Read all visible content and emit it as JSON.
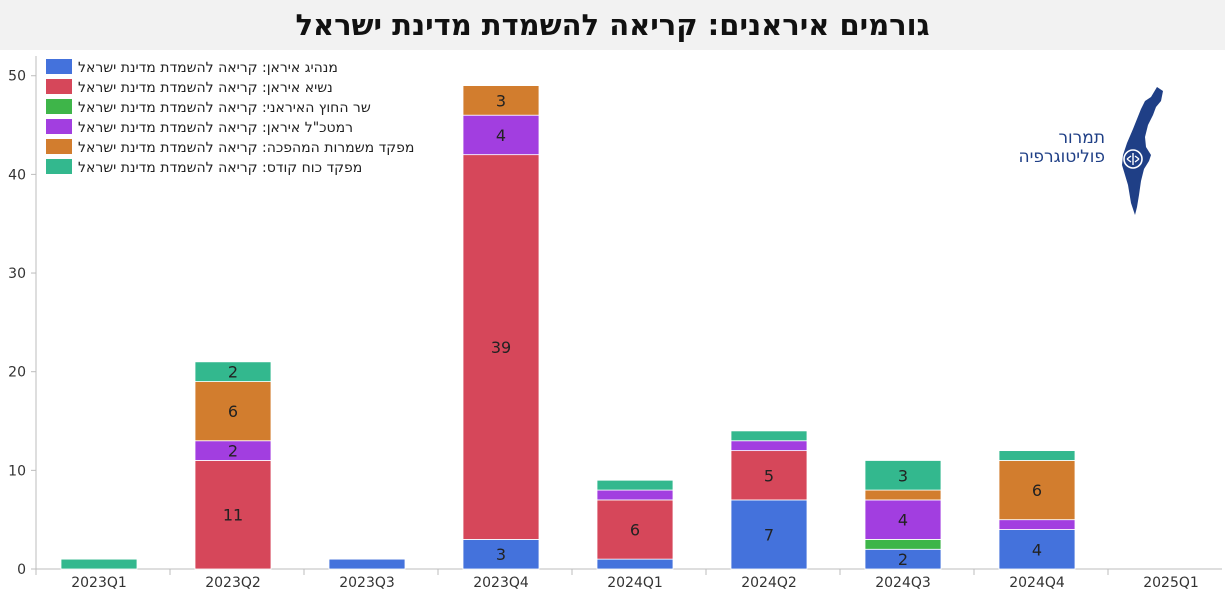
{
  "title": "גורמים איראנים: קריאה להשמדת מדינת ישראל",
  "logo": {
    "line1": "תמרור",
    "line2": "פוליטוגרפיה",
    "color": "#1f3f86"
  },
  "chart_data": {
    "type": "bar",
    "stacked": true,
    "categories": [
      "2023Q1",
      "2023Q2",
      "2023Q3",
      "2023Q4",
      "2024Q1",
      "2024Q2",
      "2024Q3",
      "2024Q4",
      "2025Q1"
    ],
    "ylim": [
      0,
      52
    ],
    "yticks": [
      0,
      10,
      20,
      30,
      40,
      50
    ],
    "grid": false,
    "legend_position": "top-left",
    "series": [
      {
        "name": "מנהיג איראן: קריאה להשמדת מדינת ישראל",
        "color": "#4472dc",
        "values": [
          0,
          0,
          1,
          3,
          1,
          7,
          2,
          4,
          0
        ]
      },
      {
        "name": "נשיא איראן: קריאה להשמדת מדינת ישראל",
        "color": "#d6475a",
        "values": [
          0,
          11,
          0,
          39,
          6,
          5,
          0,
          0,
          0
        ]
      },
      {
        "name": "שר החוץ האיראני: קריאה להשמדת מדינת ישראל",
        "color": "#3eb549",
        "values": [
          0,
          0,
          0,
          0,
          0,
          0,
          1,
          0,
          0
        ]
      },
      {
        "name": "רמטכ\"ל איראן: קריאה להשמדת מדינת ישראל",
        "color": "#a23ee0",
        "values": [
          0,
          2,
          0,
          4,
          1,
          1,
          4,
          1,
          0
        ]
      },
      {
        "name": "מפקד משמרות המהפכה: קריאה להשמדת מדינת ישראל",
        "color": "#d27d2e",
        "values": [
          0,
          6,
          0,
          3,
          0,
          0,
          1,
          6,
          0
        ]
      },
      {
        "name": "מפקד כוח קודס: קריאה להשמדת מדינת ישראל",
        "color": "#33b88e",
        "values": [
          1,
          2,
          0,
          0,
          1,
          1,
          3,
          1,
          0
        ]
      }
    ],
    "data_labels": [
      {
        "category": "2023Q2",
        "series": 1,
        "text": "11"
      },
      {
        "category": "2023Q2",
        "series": 3,
        "text": "2"
      },
      {
        "category": "2023Q2",
        "series": 4,
        "text": "6"
      },
      {
        "category": "2023Q2",
        "series": 5,
        "text": "2"
      },
      {
        "category": "2023Q4",
        "series": 0,
        "text": "3"
      },
      {
        "category": "2023Q4",
        "series": 1,
        "text": "39"
      },
      {
        "category": "2023Q4",
        "series": 3,
        "text": "4"
      },
      {
        "category": "2023Q4",
        "series": 4,
        "text": "3"
      },
      {
        "category": "2024Q1",
        "series": 1,
        "text": "6"
      },
      {
        "category": "2024Q2",
        "series": 0,
        "text": "7"
      },
      {
        "category": "2024Q2",
        "series": 1,
        "text": "5"
      },
      {
        "category": "2024Q3",
        "series": 0,
        "text": "2"
      },
      {
        "category": "2024Q3",
        "series": 3,
        "text": "4"
      },
      {
        "category": "2024Q3",
        "series": 5,
        "text": "3"
      },
      {
        "category": "2024Q4",
        "series": 0,
        "text": "4"
      },
      {
        "category": "2024Q4",
        "series": 4,
        "text": "6"
      }
    ]
  }
}
